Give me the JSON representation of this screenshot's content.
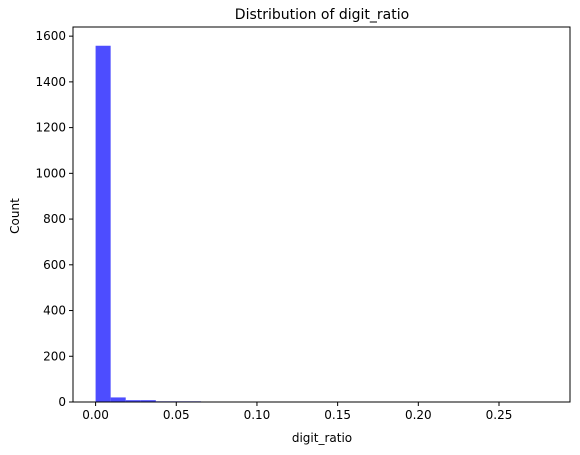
{
  "chart_data": {
    "type": "bar",
    "subtype": "histogram",
    "title": "Distribution of digit_ratio",
    "xlabel": "digit_ratio",
    "ylabel": "Count",
    "xlim": [
      -0.014,
      0.294
    ],
    "ylim": [
      0,
      1640
    ],
    "xticks": [
      0.0,
      0.05,
      0.1,
      0.15,
      0.2,
      0.25
    ],
    "xtick_labels": [
      "0.00",
      "0.05",
      "0.10",
      "0.15",
      "0.20",
      "0.25"
    ],
    "yticks": [
      0,
      200,
      400,
      600,
      800,
      1000,
      1200,
      1400,
      1600
    ],
    "ytick_labels": [
      "0",
      "200",
      "400",
      "600",
      "800",
      "1000",
      "1200",
      "1400",
      "1600"
    ],
    "bin_edges": [
      0.0,
      0.00933,
      0.01867,
      0.028,
      0.03733,
      0.04667,
      0.056,
      0.06533,
      0.07467,
      0.084,
      0.09333,
      0.10267,
      0.112,
      0.12133,
      0.13067,
      0.14,
      0.14933,
      0.15867,
      0.168,
      0.17733,
      0.18667,
      0.196,
      0.20533,
      0.21467,
      0.224,
      0.23333,
      0.24267,
      0.252,
      0.26133,
      0.27067,
      0.28
    ],
    "counts": [
      1558,
      20,
      8,
      8,
      3,
      3,
      3,
      2,
      2,
      2,
      0,
      0,
      2,
      0,
      0,
      0,
      2,
      0,
      0,
      0,
      0,
      0,
      0,
      0,
      0,
      0,
      0,
      0,
      0,
      2
    ],
    "bar_color": "#4d4dff",
    "grid": false,
    "legend": "none"
  }
}
